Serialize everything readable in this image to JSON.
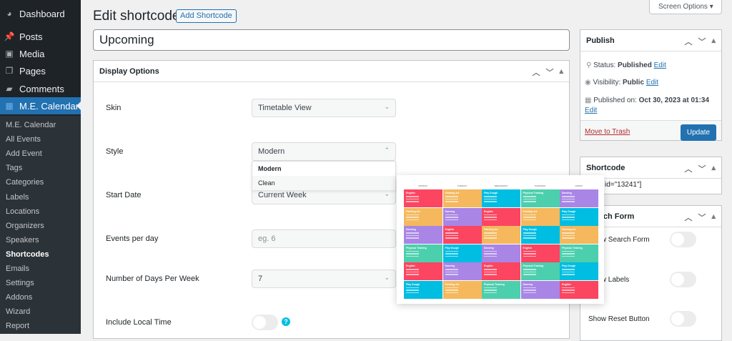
{
  "sidebar": {
    "menu": [
      {
        "label": "Dashboard",
        "icon": "dashboard-icon"
      },
      {
        "label": "Posts",
        "icon": "pin-icon"
      },
      {
        "label": "Media",
        "icon": "media-icon"
      },
      {
        "label": "Pages",
        "icon": "pages-icon"
      },
      {
        "label": "Comments",
        "icon": "comment-icon"
      },
      {
        "label": "M.E. Calendar",
        "icon": "calendar-icon"
      }
    ],
    "submenu": [
      "M.E. Calendar",
      "All Events",
      "Add Event",
      "Tags",
      "Categories",
      "Labels",
      "Locations",
      "Organizers",
      "Speakers",
      "Shortcodes",
      "Emails",
      "Settings",
      "Addons",
      "Wizard",
      "Report"
    ],
    "current": "Shortcodes"
  },
  "header": {
    "title": "Edit shortcodes",
    "add_button": "Add Shortcode",
    "screen_options": "Screen Options ▾"
  },
  "post_title": "Upcoming",
  "display_options": {
    "title": "Display Options",
    "skin": {
      "label": "Skin",
      "value": "Timetable View"
    },
    "style": {
      "label": "Style",
      "value": "Modern",
      "options": [
        "Modern",
        "Clean"
      ]
    },
    "start_date": {
      "label": "Start Date",
      "value": "Current Week"
    },
    "events_per_day": {
      "label": "Events per day",
      "placeholder": "eg. 6"
    },
    "days_per_week": {
      "label": "Number of Days Per Week",
      "value": "7"
    },
    "local_time": {
      "label": "Include Local Time",
      "help": "?"
    }
  },
  "preview": {
    "days": [
      "MONDAY",
      "TUESDAY",
      "WEDNESDAY",
      "THURSDAY",
      "FRIDAY"
    ],
    "rows": [
      [
        "English",
        "Painting Art",
        "Play Dough",
        "Physical Training",
        "Dancing"
      ],
      [
        "Painting Art",
        "Dancing",
        "English",
        "Painting Art",
        "Play Dough"
      ],
      [
        "Dancing",
        "English",
        "Painting Art",
        "Play Dough",
        "Painting Art"
      ],
      [
        "Physical Training",
        "Play Dough",
        "Dancing",
        "English",
        "Physical Training"
      ],
      [
        "English",
        "Dancing",
        "English",
        "Physical Training",
        "Play Dough"
      ],
      [
        "Play Dough",
        "Painting Art",
        "Physical Training",
        "Dancing",
        "English"
      ]
    ],
    "colors": {
      "English": "#fc4560",
      "Painting Art": "#f5b85c",
      "Play Dough": "#00bde2",
      "Physical Training": "#4ccfad",
      "Dancing": "#a985e6"
    }
  },
  "publish": {
    "title": "Publish",
    "status_label": "Status:",
    "status": "Published",
    "visibility_label": "Visibility:",
    "visibility": "Public",
    "published_label": "Published on:",
    "published": "Oct 30, 2023 at 01:34",
    "edit": "Edit",
    "trash": "Move to Trash",
    "update": "Update"
  },
  "shortcode": {
    "title": "Shortcode",
    "value": "id=\"13241\"]"
  },
  "search_form": {
    "title": "Search Form",
    "show_search": "Show Search Form",
    "show_labels": "Show Labels",
    "show_reset": "Show Reset Button"
  }
}
